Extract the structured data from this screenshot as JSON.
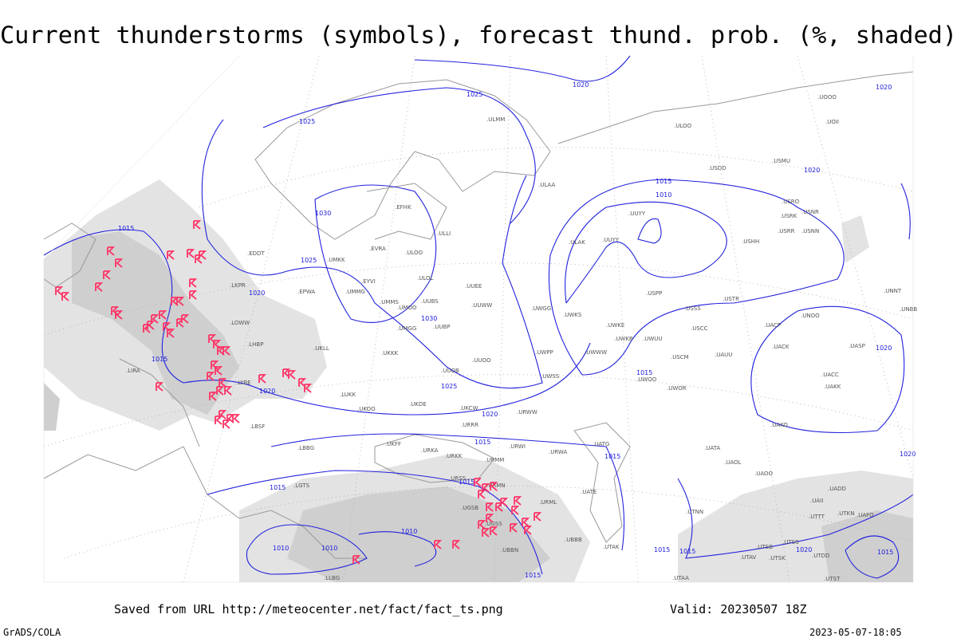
{
  "header": {
    "title": "Current thunderstorms (symbols), forecast thund. prob. (%, shaded)"
  },
  "isobar_labels": [
    1025,
    1025,
    1020,
    1020,
    1015,
    1030,
    1025,
    1020,
    1030,
    1015,
    1020,
    1025,
    1020,
    1015,
    1015,
    1015,
    1015,
    1010,
    1010,
    1010,
    1015,
    1015,
    1015,
    1015,
    1015,
    1010,
    1020,
    1020,
    1020,
    1015,
    1020
  ],
  "stations": [
    ".UOOO",
    ".UOII",
    ".ULMM",
    ".ULOO",
    ".USDD",
    ".USMU",
    ".ULAA",
    ".USRO",
    ".USRK",
    ".USNR",
    ".USRR",
    ".USNN",
    ".UUYY",
    ".ULAK",
    ".UUYY",
    ".USHH",
    ".EFHK",
    ".ULLI",
    ".EVRA",
    ".ULOO",
    ".UMKK",
    ".EDDT",
    ".EYVI",
    ".ULOL",
    ".UMMG",
    ".EPWA",
    ".UMMS",
    ".UMOO",
    ".UUEE",
    ".UUWW",
    ".UWGG",
    ".UUBS",
    ".UMGG",
    ".UUBP",
    ".UWKS",
    ".UWKE",
    ".UWKB",
    ".USPP",
    ".USSS",
    ".USTR",
    ".USCC",
    ".UNNT",
    ".UNBB",
    ".UNOO",
    ".UACP",
    ".UACK",
    ".UASP",
    ".UACC",
    ".UAKK",
    ".UAKO",
    ".UKKK",
    ".UUOO",
    ".UWPP",
    ".UWWW",
    ".UWUU",
    ".USCM",
    ".UAUU",
    ".UUOB",
    ".UWSS",
    ".UWOO",
    ".UWOR",
    ".UKLL",
    ".LKPR",
    ".LOWW",
    ".LHBP",
    ".LIRA",
    ".LYBE",
    ".LUKK",
    ".UKOO",
    ".URRR",
    ".UKDE",
    ".UKCW",
    ".URWW",
    ".LBSF",
    ".LBBG",
    ".UKFF",
    ".URKA",
    ".URKK",
    ".URWI",
    ".URWA",
    ".UATG",
    ".UATA",
    ".UAOL",
    ".UAOO",
    ".LGTS",
    ".URSS",
    ".URMM",
    ".URMN",
    ".UGSB",
    ".UGSS",
    ".UBBN",
    ".UBBB",
    ".UTAK",
    ".UATE",
    ".URML",
    ".UTNN",
    ".UAFO",
    ".UTKN",
    ".UTTT",
    ".UTSB",
    ".UTSS",
    ".UTAV",
    ".UTSK",
    ".UTDD",
    ".UTST",
    ".UTAA",
    ".LLBG",
    ".UADD",
    ".UAII"
  ],
  "footer": {
    "source": "Saved from URL http://meteocenter.net/fact/fact_ts.png",
    "valid": "Valid: 20230507 18Z",
    "software": "GrADS/COLA",
    "timestamp": "2023-05-07-18:05"
  }
}
